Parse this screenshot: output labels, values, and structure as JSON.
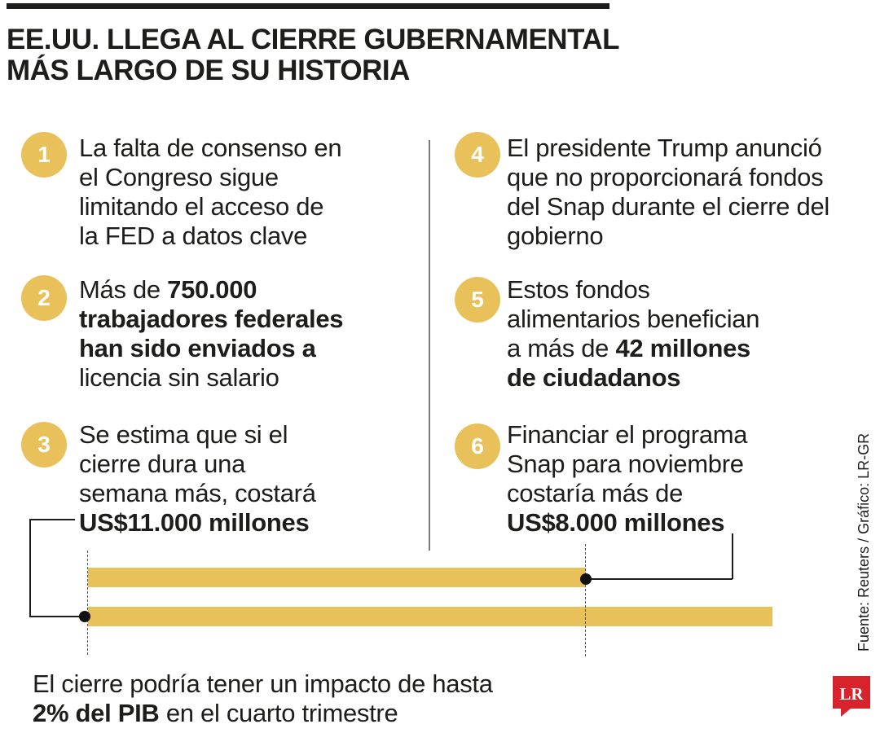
{
  "title": {
    "line1": "EE.UU. LLEGA AL CIERRE GUBERNAMENTAL",
    "line2": "MÁS LARGO DE SU HISTORIA"
  },
  "items": [
    {
      "number": "1",
      "lines": [
        "La falta de consenso en",
        "el Congreso sigue",
        "limitando el acceso de",
        "la FED a datos clave"
      ]
    },
    {
      "number": "2",
      "line1_prefix": "Más de ",
      "line1_bold": "750.000",
      "bold_lines": [
        "trabajadores federales",
        "han sido enviados a"
      ],
      "line_last": "licencia sin salario"
    },
    {
      "number": "3",
      "lines": [
        "Se estima que si el",
        "cierre dura una",
        "semana más, costará"
      ],
      "bold_line": "US$11.000 millones"
    },
    {
      "number": "4",
      "lines": [
        "El presidente Trump anunció",
        "que no proporcionará fondos",
        "del Snap durante el cierre del",
        "gobierno"
      ]
    },
    {
      "number": "5",
      "lines": [
        "Estos fondos",
        "alimentarios benefician"
      ],
      "line3_prefix": "a más de ",
      "line3_bold": "42 millones",
      "bold_line": "de ciudadanos"
    },
    {
      "number": "6",
      "lines": [
        "Financiar el programa",
        "Snap para noviembre",
        "costaría más de"
      ],
      "bold_line": "US$8.000 millones"
    }
  ],
  "bars": [
    {
      "label": "US$8.000 millones",
      "value": 8000
    },
    {
      "label": "US$11.000 millones",
      "value": 11000
    }
  ],
  "bottom": {
    "line1": "El cierre podría tener un impacto de hasta",
    "line2_bold": "2% del PIB",
    "line2_rest": " en el cuarto trimestre"
  },
  "source": "Fuente: Reuters / Gráfico: LR-GR",
  "logo": {
    "text": "LR",
    "color": "#d7232c"
  },
  "colors": {
    "accent": "#e9c15b",
    "text": "#1d1d1b"
  }
}
